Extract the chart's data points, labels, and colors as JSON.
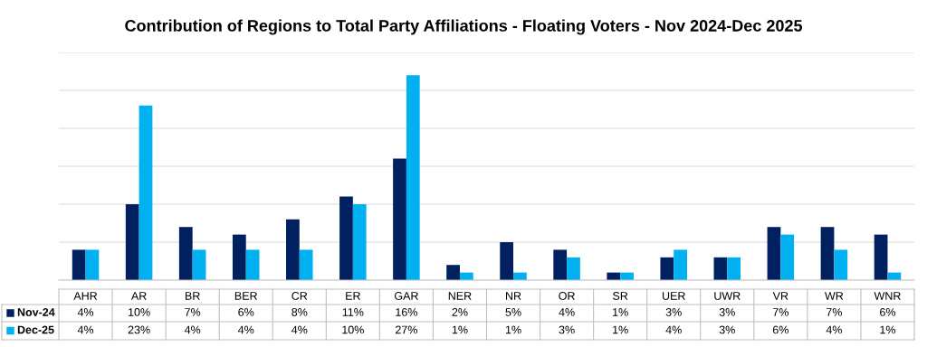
{
  "chart_data": {
    "type": "bar",
    "title": "Contribution of Regions to Total Party Affiliations - Floating Voters - Nov 2024-Dec 2025",
    "categories": [
      "AHR",
      "AR",
      "BR",
      "BER",
      "CR",
      "ER",
      "GAR",
      "NER",
      "NR",
      "OR",
      "SR",
      "UER",
      "UWR",
      "VR",
      "WR",
      "WNR"
    ],
    "series": [
      {
        "name": "Nov-24",
        "color": "#002060",
        "values": [
          4,
          10,
          7,
          6,
          8,
          11,
          16,
          2,
          5,
          4,
          1,
          3,
          3,
          7,
          7,
          6
        ],
        "value_labels": [
          "4%",
          "10%",
          "7%",
          "6%",
          "8%",
          "11%",
          "16%",
          "2%",
          "5%",
          "4%",
          "1%",
          "3%",
          "3%",
          "7%",
          "7%",
          "6%"
        ]
      },
      {
        "name": "Dec-25",
        "color": "#00b0f0",
        "values": [
          4,
          23,
          4,
          4,
          4,
          10,
          27,
          1,
          1,
          3,
          1,
          4,
          3,
          6,
          4,
          1
        ],
        "value_labels": [
          "4%",
          "23%",
          "4%",
          "4%",
          "4%",
          "10%",
          "27%",
          "1%",
          "1%",
          "3%",
          "1%",
          "4%",
          "3%",
          "6%",
          "4%",
          "1%"
        ]
      }
    ],
    "ylim": [
      0,
      30
    ],
    "yticks": [
      {
        "value": 0,
        "label": null
      },
      {
        "value": 5,
        "label": null
      },
      {
        "value": 10,
        "label": null
      },
      {
        "value": 15,
        "label": null
      },
      {
        "value": 20,
        "label": null
      },
      {
        "value": 25,
        "label": null
      },
      {
        "value": 30,
        "label": null
      }
    ],
    "grid": "y",
    "legend": "bottom"
  }
}
